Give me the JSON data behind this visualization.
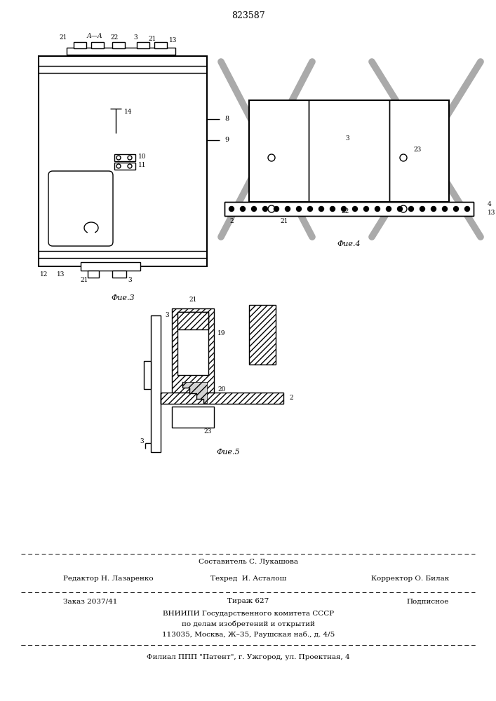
{
  "patent_number": "823587",
  "bg": "#ffffff",
  "fig3_caption": "Фие.3",
  "fig4_caption": "Фие.4",
  "fig5_caption": "Фие.5",
  "footer_sestavitel": "Составитель С. Лукашова",
  "footer_redaktor": "Редактор Н. Лазаренко",
  "footer_tehred": "Техред  И. Асталош",
  "footer_korrektor": "Корректор О. Билак",
  "footer_zakaz": "Заказ 2037/41",
  "footer_tirazh": "Тираж 627",
  "footer_podpisnoe": "Подписное",
  "footer_vniipи": "ВНИИПИ Государственного комитета СССР",
  "footer_podel": "по делам изобретений и открытий",
  "footer_addr": "113035, Москва, Ж–35, Раушская наб., д. 4/5",
  "footer_filial": "Филиал ППП \"Патент\", г. Ужгород, ул. Проектная, 4"
}
